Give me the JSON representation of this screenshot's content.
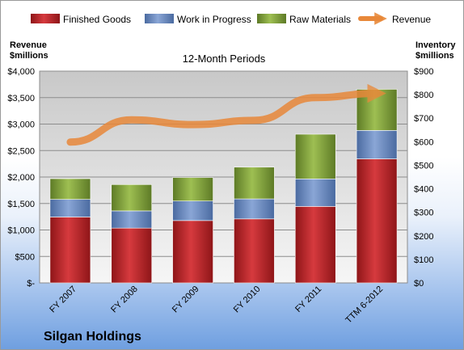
{
  "chart_data": {
    "type": "bar",
    "subtitle": "12-Month Periods",
    "company": "Silgan Holdings",
    "categories": [
      "FY 2007",
      "FY 2008",
      "FY 2009",
      "FY 2010",
      "FY 2011",
      "TTM 6-2012"
    ],
    "left_axis": {
      "title_lines": [
        "Revenue",
        "$millions"
      ],
      "ticks": [
        "$-",
        "$500",
        "$1,000",
        "$1,500",
        "$2,000",
        "$2,500",
        "$3,000",
        "$3,500",
        "$4,000"
      ],
      "ylim": [
        0,
        4000
      ]
    },
    "right_axis": {
      "title_lines": [
        "Inventory",
        "$millions"
      ],
      "ticks": [
        "$0",
        "$100",
        "$200",
        "$300",
        "$400",
        "$500",
        "$600",
        "$700",
        "$800",
        "$900"
      ],
      "ylim": [
        0,
        900
      ]
    },
    "series": [
      {
        "name": "Finished Goods",
        "color": "#c0262a",
        "axis": "right",
        "values": [
          280,
          233,
          265,
          272,
          325,
          527
        ]
      },
      {
        "name": "Work in Progress",
        "color": "#6f8fc4",
        "axis": "right",
        "values": [
          75,
          73,
          83,
          85,
          117,
          121
        ]
      },
      {
        "name": "Raw Materials",
        "color": "#86a83e",
        "axis": "right",
        "values": [
          88,
          112,
          100,
          135,
          190,
          175
        ]
      },
      {
        "name": "Revenue",
        "color": "#e8883a",
        "axis": "left",
        "kind": "line",
        "values": [
          2660,
          3080,
          2990,
          3070,
          3500,
          3580
        ]
      }
    ],
    "grid": true,
    "legend_position": "top"
  }
}
